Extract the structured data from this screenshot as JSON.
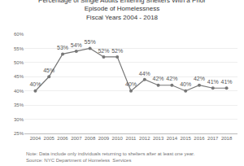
{
  "chart_data": {
    "type": "line",
    "title": "Percentage of Single Adults Entering Shelters With a Prior\nEpisode of Homelessness",
    "subtitle": "Fiscal Years 2004 - 2018",
    "x": [
      2004,
      2005,
      2006,
      2007,
      2008,
      2009,
      2010,
      2011,
      2012,
      2013,
      2014,
      2015,
      2016,
      2017,
      2018
    ],
    "values": [
      40,
      45,
      53,
      54,
      55,
      52,
      52,
      40,
      44,
      42,
      42,
      40,
      42,
      41,
      41
    ],
    "value_labels": [
      "40%",
      "45%",
      "53%",
      "54%",
      "55%",
      "52%",
      "52%",
      "40%",
      "44%",
      "42%",
      "42%",
      "40%",
      "42%",
      "41%",
      "41%"
    ],
    "data_labels": true,
    "color": "#777777",
    "marker": "circle",
    "xlim": [
      2003.2,
      2018.8
    ],
    "xticks": [
      2004,
      2005,
      2006,
      2007,
      2008,
      2009,
      2010,
      2011,
      2012,
      2013,
      2014,
      2015,
      2016,
      2017,
      2018
    ],
    "ylim": [
      25,
      60
    ],
    "yticks": [
      {
        "value": 25,
        "label": "25%"
      },
      {
        "value": 30,
        "label": "30%"
      },
      {
        "value": 35,
        "label": "35%"
      },
      {
        "value": 40,
        "label": "40%"
      },
      {
        "value": 45,
        "label": "45%"
      },
      {
        "value": 50,
        "label": "50%"
      },
      {
        "value": 55,
        "label": "55%"
      },
      {
        "value": 60,
        "label": "60%"
      }
    ],
    "grid": true,
    "annotations": [
      "Note: Data include only individuals returning to shelters after at least one year.",
      "Source: NYC Department of Homeless  Services"
    ]
  }
}
